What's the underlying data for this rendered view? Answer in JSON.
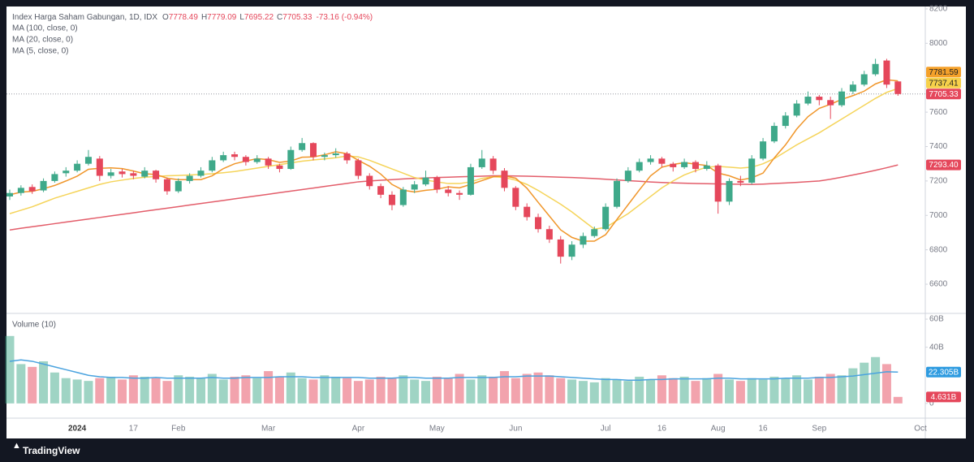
{
  "chart_data": {
    "type": "candlestick",
    "title": "Index Harga Saham Gabungan, 1D, IDX",
    "ohlc_prefixes": [
      "O",
      "H",
      "L",
      "C"
    ],
    "change": -73.16,
    "change_pct": {
      "value": -0.94,
      "label": "(-0.94%)"
    },
    "categories": [
      null,
      null,
      null,
      null,
      null,
      null,
      "2024",
      null,
      null,
      null,
      null,
      "17",
      null,
      null,
      null,
      "Feb",
      null,
      null,
      null,
      null,
      null,
      null,
      null,
      "Mar",
      null,
      null,
      null,
      null,
      null,
      null,
      null,
      "Apr",
      null,
      null,
      null,
      null,
      null,
      null,
      "May",
      null,
      null,
      null,
      null,
      null,
      null,
      "Jun",
      null,
      null,
      null,
      null,
      null,
      null,
      null,
      "Jul",
      null,
      null,
      null,
      null,
      "16",
      null,
      null,
      null,
      null,
      "Aug",
      null,
      null,
      null,
      "16",
      null,
      null,
      null,
      null,
      "Sep",
      null,
      null,
      null,
      null,
      null,
      null,
      null,
      null,
      "Oct"
    ],
    "open": [
      7110,
      7130,
      7165,
      7145,
      7200,
      7245,
      7260,
      7300,
      7330,
      7230,
      7255,
      7245,
      7225,
      7260,
      7210,
      7140,
      7200,
      7230,
      7260,
      7320,
      7355,
      7340,
      7310,
      7330,
      7290,
      7270,
      7380,
      7420,
      7340,
      7350,
      7360,
      7320,
      7230,
      7170,
      7120,
      7060,
      7150,
      7180,
      7220,
      7150,
      7130,
      7120,
      7280,
      7330,
      7260,
      7160,
      7050,
      6990,
      6920,
      6860,
      6760,
      6830,
      6880,
      6920,
      7050,
      7200,
      7260,
      7310,
      7330,
      7300,
      7280,
      7310,
      7270,
      7290,
      7080,
      7200,
      7190,
      7330,
      7430,
      7520,
      7580,
      7650,
      7690,
      7670,
      7640,
      7720,
      7760,
      7820,
      7900,
      7778.49,
      null,
      null
    ],
    "high": [
      7150,
      7175,
      7180,
      7215,
      7255,
      7280,
      7320,
      7380,
      7345,
      7270,
      7270,
      7260,
      7280,
      7265,
      7220,
      7215,
      7245,
      7280,
      7340,
      7370,
      7370,
      7350,
      7350,
      7340,
      7300,
      7400,
      7450,
      7425,
      7365,
      7390,
      7370,
      7330,
      7245,
      7185,
      7140,
      7165,
      7200,
      7260,
      7230,
      7170,
      7145,
      7300,
      7380,
      7345,
      7275,
      7170,
      7070,
      7010,
      6940,
      6880,
      6850,
      6900,
      6935,
      7070,
      7215,
      7280,
      7330,
      7350,
      7340,
      7310,
      7330,
      7320,
      7315,
      7300,
      7215,
      7230,
      7350,
      7450,
      7540,
      7600,
      7670,
      7720,
      7700,
      7690,
      7740,
      7780,
      7840,
      7910,
      7910,
      7779.09,
      null,
      null
    ],
    "low": [
      7090,
      7115,
      7125,
      7135,
      7190,
      7225,
      7250,
      7290,
      7200,
      7215,
      7220,
      7210,
      7215,
      7190,
      7120,
      7130,
      7185,
      7220,
      7250,
      7310,
      7320,
      7290,
      7300,
      7270,
      7250,
      7265,
      7370,
      7320,
      7320,
      7335,
      7300,
      7210,
      7150,
      7100,
      7030,
      7050,
      7130,
      7170,
      7130,
      7110,
      7090,
      7115,
      7270,
      7240,
      7140,
      7030,
      6970,
      6900,
      6840,
      6720,
      6740,
      6810,
      6870,
      6910,
      7040,
      7190,
      7250,
      7295,
      7280,
      7255,
      7270,
      7250,
      7260,
      7010,
      7060,
      7170,
      7180,
      7320,
      7420,
      7505,
      7570,
      7640,
      7640,
      7560,
      7630,
      7705,
      7750,
      7810,
      7740,
      7695.22,
      null,
      null
    ],
    "close": [
      7130,
      7160,
      7140,
      7200,
      7240,
      7260,
      7300,
      7340,
      7230,
      7250,
      7240,
      7230,
      7260,
      7210,
      7140,
      7200,
      7230,
      7260,
      7320,
      7350,
      7340,
      7310,
      7330,
      7290,
      7270,
      7380,
      7420,
      7340,
      7350,
      7360,
      7320,
      7230,
      7170,
      7120,
      7060,
      7150,
      7180,
      7220,
      7150,
      7130,
      7120,
      7280,
      7330,
      7260,
      7160,
      7050,
      6990,
      6920,
      6860,
      6760,
      6830,
      6880,
      6920,
      7050,
      7200,
      7260,
      7310,
      7330,
      7300,
      7280,
      7310,
      7270,
      7290,
      7080,
      7200,
      7190,
      7330,
      7430,
      7520,
      7580,
      7650,
      7690,
      7670,
      7640,
      7720,
      7760,
      7820,
      7880,
      7760,
      7705.33,
      null,
      null
    ],
    "up_color": "#3fa98a",
    "down_color": "#e5475b",
    "series": [
      {
        "name": "MA (100, close, 0)",
        "color": "#e35d6a",
        "values": [
          6915,
          6925,
          6934,
          6943,
          6952,
          6961,
          6970,
          6979,
          6988,
          6997,
          7006,
          7015,
          7024,
          7033,
          7042,
          7051,
          7060,
          7069,
          7078,
          7087,
          7096,
          7105,
          7114,
          7123,
          7132,
          7141,
          7150,
          7159,
          7168,
          7177,
          7186,
          7195,
          7200,
          7204,
          7208,
          7212,
          7215,
          7218,
          7220,
          7222,
          7224,
          7226,
          7228,
          7230,
          7230,
          7229,
          7228,
          7226,
          7224,
          7222,
          7220,
          7217,
          7214,
          7210,
          7206,
          7202,
          7198,
          7194,
          7191,
          7189,
          7187,
          7185,
          7184,
          7183,
          7182,
          7181,
          7180,
          7182,
          7185,
          7188,
          7192,
          7196,
          7200,
          7210,
          7222,
          7235,
          7248,
          7262,
          7277,
          7293.4,
          null,
          null
        ]
      },
      {
        "name": "MA (20, close, 0)",
        "color": "#f5d45a",
        "values": [
          7010,
          7030,
          7050,
          7075,
          7100,
          7120,
          7140,
          7160,
          7180,
          7195,
          7205,
          7215,
          7222,
          7226,
          7230,
          7232,
          7235,
          7238,
          7242,
          7248,
          7255,
          7265,
          7275,
          7285,
          7295,
          7305,
          7315,
          7322,
          7328,
          7335,
          7345,
          7340,
          7320,
          7295,
          7270,
          7245,
          7220,
          7205,
          7195,
          7185,
          7185,
          7195,
          7215,
          7225,
          7220,
          7205,
          7180,
          7145,
          7105,
          7065,
          7020,
          6970,
          6920,
          6930,
          6970,
          7010,
          7060,
          7110,
          7160,
          7200,
          7235,
          7260,
          7280,
          7285,
          7280,
          7275,
          7280,
          7300,
          7330,
          7370,
          7410,
          7445,
          7480,
          7520,
          7560,
          7600,
          7640,
          7680,
          7715,
          7737.41,
          null,
          null
        ]
      },
      {
        "name": "MA (5, close, 0)",
        "color": "#f0962a",
        "values": [
          7120,
          7135,
          7140,
          7155,
          7174,
          7200,
          7228,
          7268,
          7274,
          7276,
          7272,
          7258,
          7242,
          7238,
          7216,
          7208,
          7208,
          7208,
          7230,
          7272,
          7300,
          7316,
          7330,
          7324,
          7308,
          7316,
          7338,
          7340,
          7352,
          7370,
          7358,
          7320,
          7286,
          7240,
          7180,
          7146,
          7136,
          7146,
          7152,
          7166,
          7160,
          7180,
          7202,
          7224,
          7230,
          7216,
          7158,
          7076,
          6996,
          6916,
          6872,
          6850,
          6850,
          6888,
          6976,
          7062,
          7148,
          7230,
          7280,
          7296,
          7306,
          7298,
          7290,
          7246,
          7230,
          7206,
          7218,
          7246,
          7334,
          7410,
          7502,
          7574,
          7622,
          7646,
          7674,
          7696,
          7722,
          7764,
          7788,
          7781.59,
          null,
          null
        ]
      }
    ],
    "ylim": [
      6435,
      8214
    ],
    "yticks": [
      6600,
      6800,
      7000,
      7200,
      7400,
      7600,
      8000,
      8200
    ],
    "price_tags": [
      {
        "value": 7781.59,
        "label": "7781.59",
        "color": "#f5a12a",
        "text_color": "#222222"
      },
      {
        "value": 7737.41,
        "label": "7737.41",
        "color": "#f7d14a",
        "text_color": "#222222"
      },
      {
        "value": 7705.33,
        "label": "7705.33",
        "color": "#e5475b",
        "text_color": "#ffffff"
      },
      {
        "value": 7293.4,
        "label": "7293.40",
        "color": "#e5475b",
        "text_color": "#ffffff"
      }
    ],
    "volume": {
      "title": "Volume (10)",
      "values": [
        48,
        28,
        26,
        30,
        22,
        18,
        17,
        16,
        18,
        19,
        17,
        20,
        19,
        18,
        16,
        20,
        19,
        18,
        21,
        17,
        19,
        20,
        18,
        23,
        19,
        22,
        18,
        17,
        20,
        19,
        18,
        16,
        17,
        19,
        18,
        20,
        17,
        16,
        19,
        18,
        21,
        17,
        20,
        19,
        23,
        18,
        21,
        22,
        20,
        18,
        17,
        16,
        15,
        18,
        17,
        16,
        19,
        17,
        20,
        18,
        19,
        16,
        18,
        21,
        17,
        16,
        18,
        17,
        19,
        18,
        20,
        17,
        19,
        21,
        20,
        25,
        29,
        33,
        28,
        4.631,
        null,
        null
      ],
      "ma": {
        "color": "#4aa3df",
        "values": [
          30,
          31,
          30,
          28,
          26,
          24,
          22,
          20,
          19,
          18.5,
          18.5,
          18,
          18,
          18.5,
          18,
          18,
          18,
          18,
          18.5,
          18,
          18,
          18.5,
          18.5,
          18.5,
          19,
          19,
          19,
          18.5,
          18.5,
          18.5,
          18.5,
          18.5,
          18,
          18,
          18,
          18.5,
          18.5,
          18,
          18,
          18,
          18.5,
          18.5,
          18.5,
          18.5,
          19,
          19,
          19.5,
          19.5,
          19.5,
          19,
          18.5,
          18,
          17.5,
          17,
          17,
          16.5,
          16.5,
          17,
          17,
          17.5,
          17.5,
          17.5,
          17.5,
          18,
          18,
          17.5,
          17.5,
          17.5,
          17.5,
          18,
          18,
          18,
          18.5,
          18.5,
          19,
          19.5,
          20.5,
          21.5,
          22.5,
          22.305,
          null,
          null
        ]
      },
      "ylim": [
        -10.5,
        63.5
      ],
      "yticks": [
        {
          "value": 60,
          "label": "60B"
        },
        {
          "value": 40,
          "label": "40B"
        },
        0
      ],
      "tags": [
        {
          "value": 22.305,
          "label": "22.305B",
          "color": "#2e9be0",
          "text_color": "#ffffff"
        },
        {
          "value": 4.631,
          "label": "4.631B",
          "color": "#e5475b",
          "text_color": "#ffffff"
        }
      ]
    }
  },
  "footer": {
    "brand": "TradingView"
  }
}
